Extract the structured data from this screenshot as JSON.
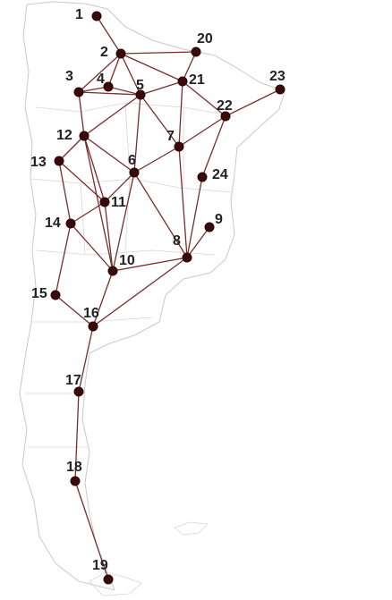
{
  "colors": {
    "edge": "#7a2c2c",
    "node": "#3a0a0a",
    "label": "#222222",
    "map_outline": "#c9c9c9"
  },
  "nodes": [
    {
      "id": "1",
      "label": "1"
    },
    {
      "id": "2",
      "label": "2"
    },
    {
      "id": "3",
      "label": "3"
    },
    {
      "id": "4",
      "label": "4"
    },
    {
      "id": "5",
      "label": "5"
    },
    {
      "id": "6",
      "label": "6"
    },
    {
      "id": "7",
      "label": "7"
    },
    {
      "id": "8",
      "label": "8"
    },
    {
      "id": "9",
      "label": "9"
    },
    {
      "id": "10",
      "label": "10"
    },
    {
      "id": "11",
      "label": "11"
    },
    {
      "id": "12",
      "label": "12"
    },
    {
      "id": "13",
      "label": "13"
    },
    {
      "id": "14",
      "label": "14"
    },
    {
      "id": "15",
      "label": "15"
    },
    {
      "id": "16",
      "label": "16"
    },
    {
      "id": "17",
      "label": "17"
    },
    {
      "id": "18",
      "label": "18"
    },
    {
      "id": "19",
      "label": "19"
    },
    {
      "id": "20",
      "label": "20"
    },
    {
      "id": "21",
      "label": "21"
    },
    {
      "id": "22",
      "label": "22"
    },
    {
      "id": "23",
      "label": "23"
    },
    {
      "id": "24",
      "label": "24"
    }
  ],
  "edges": [
    [
      "1",
      "2"
    ],
    [
      "2",
      "20"
    ],
    [
      "2",
      "21"
    ],
    [
      "2",
      "3"
    ],
    [
      "2",
      "4"
    ],
    [
      "2",
      "5"
    ],
    [
      "20",
      "21"
    ],
    [
      "3",
      "4"
    ],
    [
      "3",
      "5"
    ],
    [
      "4",
      "5"
    ],
    [
      "5",
      "21"
    ],
    [
      "3",
      "12"
    ],
    [
      "5",
      "12"
    ],
    [
      "5",
      "6"
    ],
    [
      "5",
      "7"
    ],
    [
      "21",
      "22"
    ],
    [
      "21",
      "7"
    ],
    [
      "22",
      "23"
    ],
    [
      "22",
      "7"
    ],
    [
      "22",
      "24"
    ],
    [
      "7",
      "6"
    ],
    [
      "7",
      "8"
    ],
    [
      "24",
      "8"
    ],
    [
      "9",
      "8"
    ],
    [
      "12",
      "13"
    ],
    [
      "12",
      "11"
    ],
    [
      "12",
      "6"
    ],
    [
      "12",
      "10"
    ],
    [
      "6",
      "11"
    ],
    [
      "6",
      "10"
    ],
    [
      "6",
      "8"
    ],
    [
      "13",
      "11"
    ],
    [
      "13",
      "14"
    ],
    [
      "14",
      "11"
    ],
    [
      "14",
      "10"
    ],
    [
      "14",
      "15"
    ],
    [
      "11",
      "10"
    ],
    [
      "10",
      "8"
    ],
    [
      "10",
      "16"
    ],
    [
      "15",
      "16"
    ],
    [
      "16",
      "8"
    ],
    [
      "16",
      "17"
    ],
    [
      "17",
      "18"
    ],
    [
      "18",
      "19"
    ]
  ]
}
